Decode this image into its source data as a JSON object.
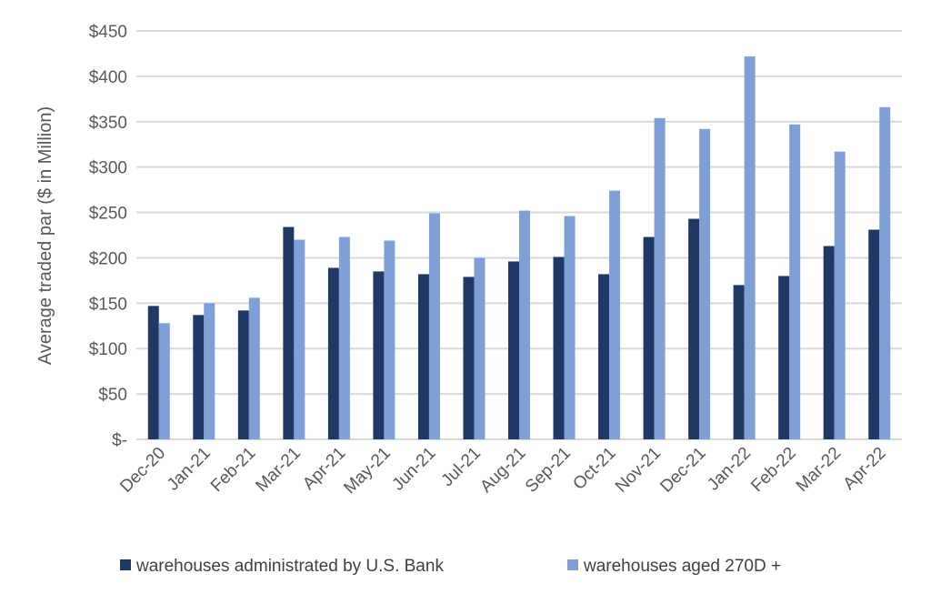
{
  "chart_data": {
    "type": "bar",
    "title": "",
    "xlabel": "",
    "ylabel": "Average traded par ($ in Million)",
    "ylim": [
      0,
      450
    ],
    "yticks": [
      "$-",
      "$50",
      "$100",
      "$150",
      "$200",
      "$250",
      "$300",
      "$350",
      "$400",
      "$450"
    ],
    "grid": true,
    "legend_position": "bottom",
    "categories": [
      "Dec-20",
      "Jan-21",
      "Feb-21",
      "Mar-21",
      "Apr-21",
      "May-21",
      "Jun-21",
      "Jul-21",
      "Aug-21",
      "Sep-21",
      "Oct-21",
      "Nov-21",
      "Dec-21",
      "Jan-22",
      "Feb-22",
      "Mar-22",
      "Apr-22"
    ],
    "series": [
      {
        "name": "warehouses administrated by U.S. Bank",
        "color": "#203864",
        "values": [
          147,
          137,
          142,
          234,
          189,
          185,
          182,
          179,
          196,
          201,
          182,
          223,
          243,
          170,
          180,
          213,
          231
        ]
      },
      {
        "name": "warehouses aged 270D +",
        "color": "#7f9fd7",
        "values": [
          128,
          150,
          156,
          220,
          223,
          219,
          249,
          200,
          252,
          246,
          274,
          354,
          342,
          422,
          347,
          317,
          366
        ]
      }
    ]
  }
}
